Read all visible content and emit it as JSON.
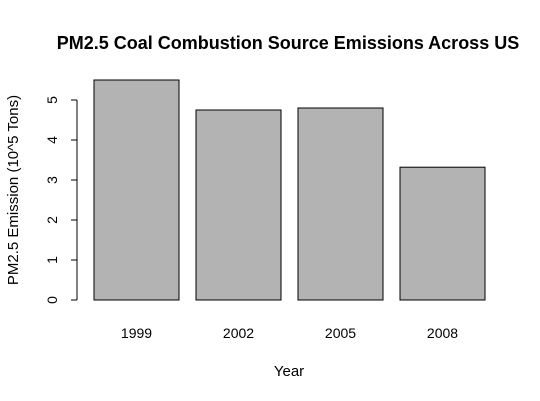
{
  "chart_data": {
    "type": "bar",
    "title": "PM2.5 Coal Combustion Source Emissions Across US",
    "xlabel": "Year",
    "ylabel": "PM2.5 Emission (10^5 Tons)",
    "categories": [
      "1999",
      "2002",
      "2005",
      "2008"
    ],
    "values": [
      5.5,
      4.75,
      4.8,
      3.32
    ],
    "ylim": [
      0,
      5
    ],
    "yticks": [
      "0",
      "1",
      "2",
      "3",
      "4",
      "5"
    ],
    "bar_color": "#b3b3b3",
    "grid": false,
    "legend": "none"
  }
}
